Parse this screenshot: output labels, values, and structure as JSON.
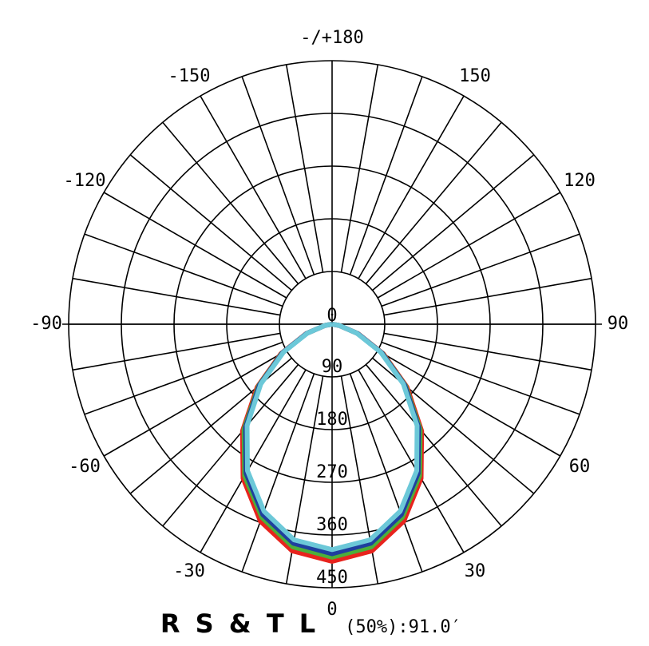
{
  "chart_data": {
    "type": "polar",
    "title": "R S & T L",
    "subtitle": "(50%):91.0′",
    "x": [
      -90,
      -80,
      -70,
      -60,
      -50,
      -40,
      -30,
      -20,
      -10,
      0,
      10,
      20,
      30,
      40,
      50,
      60,
      70,
      80,
      90
    ],
    "series": [
      {
        "color": "#e8231d",
        "values": [
          0,
          12,
          47,
          101,
          167,
          238,
          304,
          358,
          393,
          405,
          393,
          358,
          304,
          238,
          167,
          101,
          47,
          12,
          0
        ]
      },
      {
        "color": "#4caf3a",
        "values": [
          0,
          12,
          46,
          99,
          164,
          234,
          299,
          351,
          386,
          398,
          386,
          351,
          299,
          234,
          164,
          99,
          46,
          12,
          0
        ]
      },
      {
        "color": "#1f3f9e",
        "values": [
          0,
          12,
          46,
          98,
          162,
          230,
          294,
          346,
          380,
          392,
          380,
          346,
          294,
          230,
          162,
          98,
          46,
          12,
          0
        ]
      },
      {
        "color": "#6cc8d8",
        "values": [
          0,
          12,
          45,
          96,
          159,
          226,
          289,
          340,
          374,
          385,
          374,
          340,
          289,
          226,
          159,
          96,
          45,
          12,
          0
        ]
      }
    ],
    "rlim": [
      0,
      450
    ],
    "rticks": [
      0,
      90,
      180,
      270,
      360,
      450
    ],
    "aticks": [
      0,
      30,
      60,
      90,
      120,
      150,
      {
        "value": 180,
        "label": "-/+180"
      },
      -150,
      -120,
      -90,
      -60,
      -30
    ],
    "angular_grid_step": 10
  }
}
